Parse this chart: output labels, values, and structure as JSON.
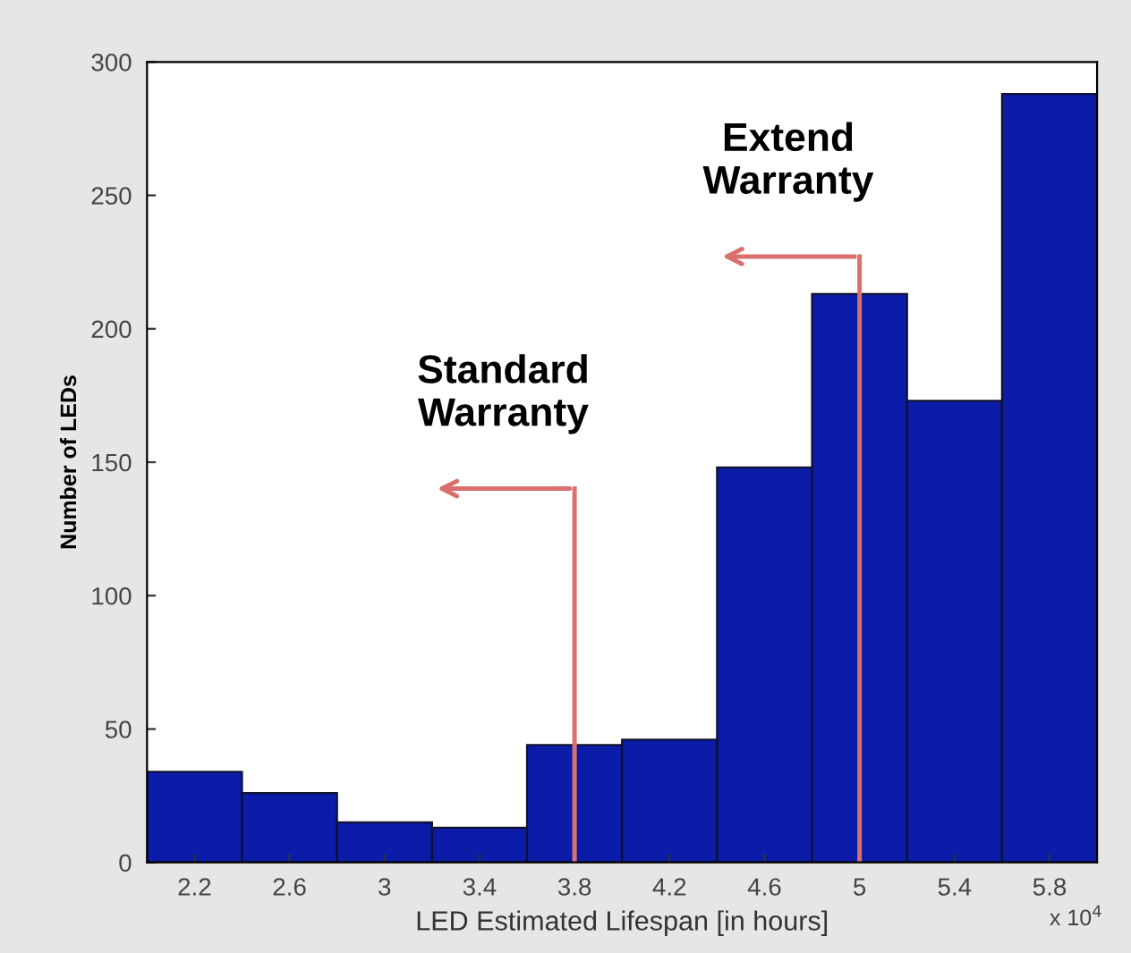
{
  "chart_data": {
    "type": "histogram",
    "xlabel": "LED Estimated Lifespan [in hours]",
    "ylabel": "Number of LEDs",
    "bins": [
      2.0,
      2.4,
      2.8,
      3.2,
      3.6,
      4.0,
      4.4,
      4.8,
      5.2,
      5.6,
      6.0
    ],
    "values": [
      34,
      26,
      15,
      13,
      44,
      46,
      148,
      213,
      173,
      288
    ],
    "color": "#0a1ca8",
    "xlim": [
      2,
      6
    ],
    "xticks": [
      2.2,
      2.6,
      3,
      3.4,
      3.8,
      4.2,
      4.6,
      5,
      5.4,
      5.8
    ],
    "ylim": [
      0,
      300
    ],
    "yticks": [
      0,
      50,
      100,
      150,
      200,
      250,
      300
    ],
    "grid": false,
    "ref_lines": [
      {
        "axis": "x",
        "value": 3.8,
        "label": "Standard\nWarranty",
        "color": "#d9706e"
      },
      {
        "axis": "x",
        "value": 5.0,
        "label": "Extend\nWarranty",
        "color": "#d9706e"
      }
    ],
    "annotations": [
      "x 10$^{4}$"
    ]
  }
}
